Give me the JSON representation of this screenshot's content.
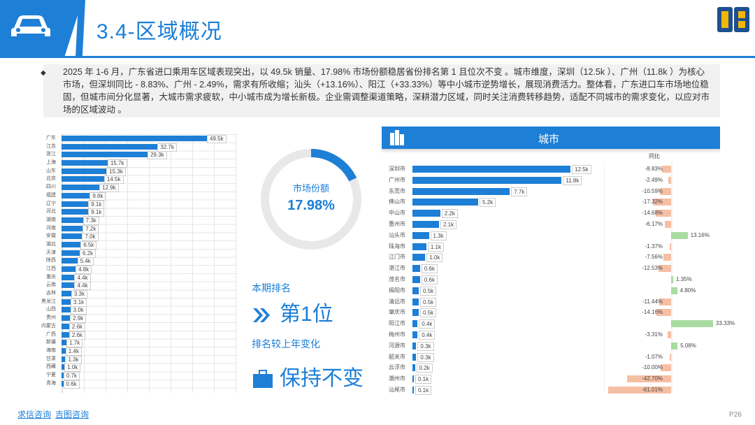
{
  "header": {
    "title": "3.4-区域概况"
  },
  "intro": {
    "text": "2025 年 1-6 月，广东省进口乘用车区域表现突出，以 49.5k 销量、17.98% 市场份额稳居省份排名第 1 且位次不变 。城市维度，深圳（12.5k ）、广州（11.8k ）为核心市场，但深圳同比 - 8.83%、广州 - 2.49%，需求有所收缩；汕头（+13.16%）、阳江（+33.33%）等中小城市逆势增长，展现消费活力。整体看，广东进口车市场地位稳固，但城市间分化显著，大城市需求疲软，中小城市成为增长新极。企业需调整渠道策略，深耕潜力区域，同时关注消费转移趋势，适配不同城市的需求变化，以应对市场的区域波动 。"
  },
  "colors": {
    "accent": "#1e7fd6",
    "positive": "#a8dca0",
    "negative": "#f6bfa4"
  },
  "chart_data": [
    {
      "type": "bar",
      "orientation": "horizontal",
      "categories": [
        "广东",
        "江苏",
        "浙江",
        "上海",
        "山东",
        "北京",
        "四川",
        "福建",
        "辽宁",
        "河北",
        "湖南",
        "河南",
        "安徽",
        "湖北",
        "天津",
        "陕西",
        "江西",
        "重庆",
        "云南",
        "吉林",
        "黑龙江",
        "山西",
        "贵州",
        "内蒙古",
        "广西",
        "新疆",
        "海南",
        "甘肃",
        "西藏",
        "宁夏",
        "青海"
      ],
      "values": [
        49.5,
        32.7,
        29.3,
        15.7,
        15.3,
        14.5,
        12.9,
        9.6,
        9.1,
        9.1,
        7.3,
        7.2,
        7.0,
        6.5,
        6.2,
        5.4,
        4.8,
        4.4,
        4.4,
        3.3,
        3.1,
        3.0,
        2.9,
        2.6,
        2.6,
        1.7,
        1.4,
        1.3,
        1.0,
        0.7,
        0.6
      ],
      "labels": [
        "49.5k",
        "32.7k",
        "29.3k",
        "15.7k",
        "15.3k",
        "14.5k",
        "12.9k",
        "9.6k",
        "9.1k",
        "9.1k",
        "7.3k",
        "7.2k",
        "7.0k",
        "6.5k",
        "6.2k",
        "5.4k",
        "4.8k",
        "4.4k",
        "4.4k",
        "3.3k",
        "3.1k",
        "3.0k",
        "2.9k",
        "2.6k",
        "2.6k",
        "1.7k",
        "1.4k",
        "1.3k",
        "1.0k",
        "0.7k",
        "0.6k"
      ],
      "grid": true
    },
    {
      "type": "pie",
      "variant": "donut",
      "label": "市场份额",
      "value_text": "17.98%",
      "values": [
        17.98,
        82.02
      ]
    },
    {
      "type": "bar",
      "orientation": "horizontal",
      "title": "城市",
      "categories": [
        "深圳市",
        "广州市",
        "东莞市",
        "佛山市",
        "中山市",
        "惠州市",
        "汕头市",
        "珠海市",
        "江门市",
        "湛江市",
        "茂名市",
        "揭阳市",
        "清远市",
        "肇庆市",
        "阳江市",
        "梅州市",
        "河源市",
        "韶关市",
        "云浮市",
        "潮州市",
        "汕尾市"
      ],
      "values": [
        12.5,
        11.8,
        7.7,
        5.2,
        2.2,
        2.1,
        1.3,
        1.1,
        1.0,
        0.6,
        0.6,
        0.5,
        0.5,
        0.5,
        0.4,
        0.4,
        0.3,
        0.3,
        0.2,
        0.1,
        0.1
      ],
      "labels": [
        "12.5k",
        "11.8k",
        "7.7k",
        "5.2k",
        "2.2k",
        "2.1k",
        "1.3k",
        "1.1k",
        "1.0k",
        "0.6k",
        "0.6k",
        "0.5k",
        "0.5k",
        "0.5k",
        "0.4k",
        "0.4k",
        "0.3k",
        "0.3k",
        "0.2k",
        "0.1k",
        "0.1k"
      ],
      "yoy_title": "同比",
      "yoy": [
        -8.83,
        -2.49,
        -10.59,
        -17.32,
        -14.68,
        -6.17,
        13.16,
        -1.37,
        -7.56,
        -12.53,
        1.35,
        4.8,
        -11.44,
        -14.16,
        33.33,
        -3.31,
        5.08,
        -1.07,
        -10.0,
        -42.7,
        -61.01
      ],
      "yoy_labels": [
        "-8.83%",
        "-2.49%",
        "-10.59%",
        "-17.32%",
        "-14.68%",
        "-6.17%",
        "13.16%",
        "-1.37%",
        "-7.56%",
        "-12.53%",
        "1.35%",
        "4.80%",
        "-11.44%",
        "-14.16%",
        "33.33%",
        "-3.31%",
        "5.08%",
        "-1.07%",
        "-10.00%",
        "-42.70%",
        "-61.01%"
      ]
    }
  ],
  "ranking": {
    "label": "本期排名",
    "value": "第1位",
    "arrow_icon": "double-chevron-right-icon"
  },
  "rank_change": {
    "label": "排名较上年变化",
    "value": "保持不变",
    "icon": "briefcase-icon"
  },
  "footer": {
    "link1": "求信咨询",
    "link2": "吉图咨询"
  },
  "page_number": "P26"
}
